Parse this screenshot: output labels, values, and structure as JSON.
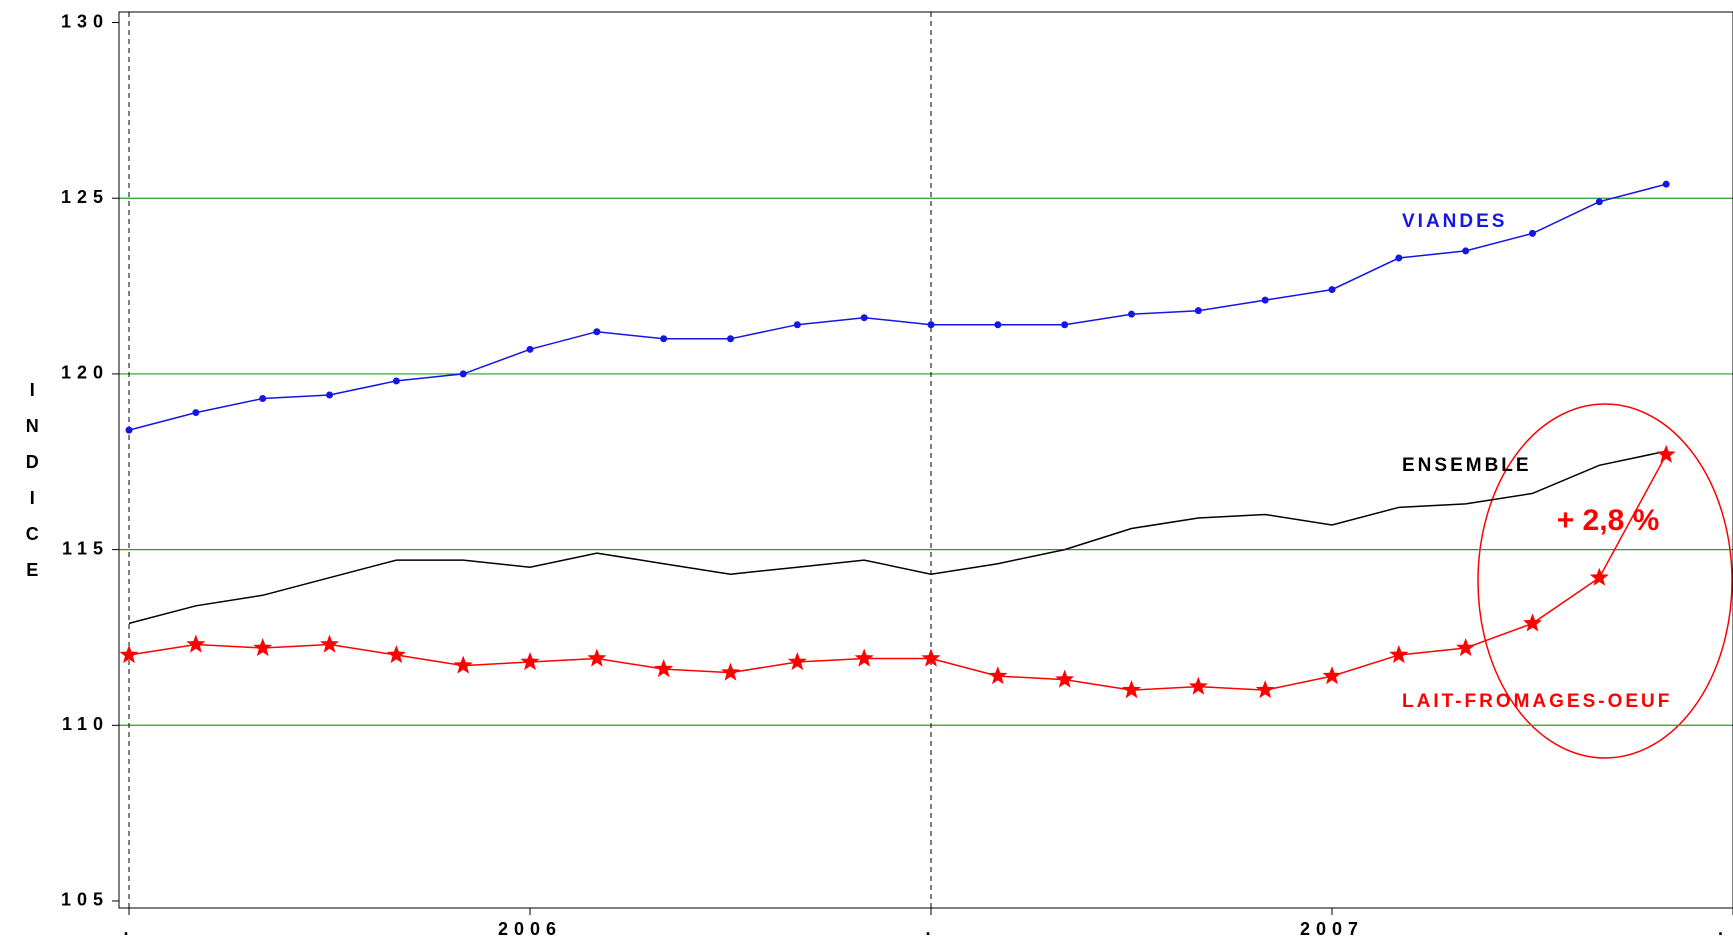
{
  "chart_data": {
    "type": "line",
    "ylabel": "INDICE",
    "x": [
      0,
      1,
      2,
      3,
      4,
      5,
      6,
      7,
      8,
      9,
      10,
      11,
      12,
      13,
      14,
      15,
      16,
      17,
      18,
      19,
      20,
      21,
      22,
      23
    ],
    "xlim": [
      -0.15,
      24
    ],
    "xticks": [
      {
        "value": 0,
        "label": "."
      },
      {
        "value": 6,
        "label": "2006"
      },
      {
        "value": 12,
        "label": "."
      },
      {
        "value": 18,
        "label": "2007"
      },
      {
        "value": 24,
        "label": "."
      }
    ],
    "ylim": [
      104.8,
      130.3
    ],
    "yticks": [
      105,
      110,
      115,
      120,
      125,
      130
    ],
    "grid": true,
    "grid_color": "#22a022",
    "series": [
      {
        "name": "VIANDES",
        "color": "#1515e6",
        "marker": "dot",
        "values": [
          118.4,
          118.9,
          119.3,
          119.4,
          119.8,
          120.0,
          120.7,
          121.2,
          121.0,
          121.0,
          121.4,
          121.6,
          121.4,
          121.4,
          121.4,
          121.7,
          121.8,
          122.1,
          122.4,
          123.3,
          123.5,
          124.0,
          124.9,
          125.4
        ]
      },
      {
        "name": "ENSEMBLE",
        "color": "#000000",
        "marker": "none",
        "values": [
          112.9,
          113.4,
          113.7,
          114.2,
          114.7,
          114.7,
          114.5,
          114.9,
          114.6,
          114.3,
          114.5,
          114.7,
          114.3,
          114.6,
          115.0,
          115.6,
          115.9,
          116.0,
          115.7,
          116.2,
          116.3,
          116.6,
          117.4,
          117.8
        ]
      },
      {
        "name": "LAIT-FROMAGES-OEUF",
        "color": "#ff0000",
        "marker": "star",
        "values": [
          112.0,
          112.3,
          112.2,
          112.3,
          112.0,
          111.7,
          111.8,
          111.9,
          111.6,
          111.5,
          111.8,
          111.9,
          111.9,
          111.4,
          111.3,
          111.0,
          111.1,
          111.0,
          111.4,
          112.0,
          112.2,
          112.9,
          114.2,
          117.7
        ]
      }
    ],
    "annotations": [
      {
        "text": "+ 2,8 %",
        "color": "#ff0000"
      }
    ]
  }
}
